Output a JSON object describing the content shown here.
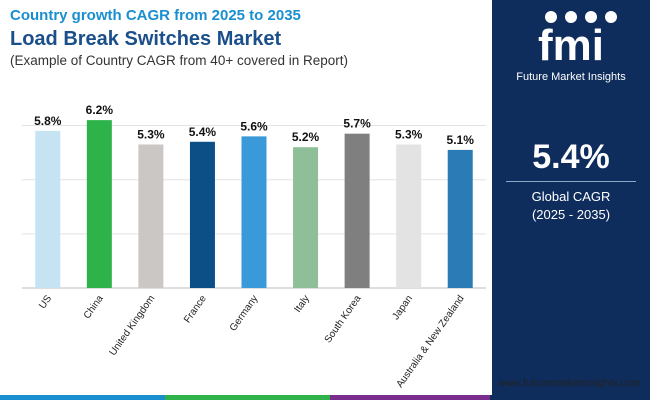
{
  "header": {
    "subtitle": "Country growth CAGR from 2025 to 2035",
    "title": "Load Break Switches Market",
    "description": "(Example of Country CAGR from 40+ covered in Report)"
  },
  "brand": {
    "logo_text": "fmi",
    "tagline": "Future Market Insights",
    "website": "www.futuremarketinsights.com"
  },
  "kpi": {
    "value": "5.4%",
    "label": "Global CAGR",
    "period": "(2025 - 2035)"
  },
  "chart_data": {
    "type": "bar",
    "title": "Load Break Switches Market",
    "categories": [
      "US",
      "China",
      "United Kingdom",
      "France",
      "Germany",
      "Italy",
      "South Korea",
      "Japan",
      "Australia & New Zealand"
    ],
    "values": [
      5.8,
      6.2,
      5.3,
      5.4,
      5.6,
      5.2,
      5.7,
      5.3,
      5.1
    ],
    "value_labels": [
      "5.8%",
      "6.2%",
      "5.3%",
      "5.4%",
      "5.6%",
      "5.2%",
      "5.7%",
      "5.3%",
      "5.1%"
    ],
    "colors": [
      "#c5e3f3",
      "#2db34a",
      "#cbc7c5",
      "#0c4f86",
      "#3a9ad9",
      "#8fbf98",
      "#7f7f7f",
      "#e3e3e3",
      "#2a7bb6"
    ],
    "ylim": [
      0,
      6.5
    ],
    "grid": true,
    "xlabel": "",
    "ylabel": ""
  },
  "colors": {
    "panel": "#0f2d5c",
    "title_blue": "#1b4f8a",
    "subtitle_blue": "#1a8fd0",
    "bottom_bar": [
      "#1a8fd0",
      "#2db34a",
      "#7b2d8e",
      "#0f2d5c"
    ]
  }
}
